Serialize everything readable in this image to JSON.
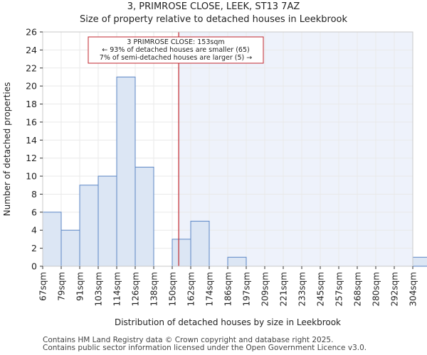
{
  "chart_data": {
    "type": "bar",
    "title": "3, PRIMROSE CLOSE, LEEK, ST13 7AZ",
    "subtitle": "Size of property relative to detached houses in Leekbrook",
    "xlabel": "Distribution of detached houses by size in Leekbrook",
    "ylabel": "Number of detached properties",
    "ylim": [
      0,
      26
    ],
    "yticks": [
      0,
      2,
      4,
      6,
      8,
      10,
      12,
      14,
      16,
      18,
      20,
      22,
      24,
      26
    ],
    "categories": [
      "67sqm",
      "79sqm",
      "91sqm",
      "103sqm",
      "114sqm",
      "126sqm",
      "138sqm",
      "150sqm",
      "162sqm",
      "174sqm",
      "186sqm",
      "197sqm",
      "209sqm",
      "221sqm",
      "233sqm",
      "245sqm",
      "257sqm",
      "268sqm",
      "280sqm",
      "292sqm",
      "304sqm"
    ],
    "values": [
      6,
      4,
      9,
      10,
      21,
      11,
      0,
      3,
      5,
      0,
      1,
      0,
      0,
      0,
      0,
      0,
      0,
      0,
      0,
      0,
      1
    ],
    "property_marker": {
      "value_sqm": 153,
      "bin_position": 7.35
    },
    "annotation": {
      "line1": "3 PRIMROSE CLOSE: 153sqm",
      "line2": "← 93% of detached houses are smaller (65)",
      "line3": "7% of semi-detached houses are larger (5) →"
    },
    "colors": {
      "bar_fill": "#dce6f4",
      "bar_stroke": "#5b86c5",
      "highlight_region": "#eef2fb",
      "marker_line": "#c0262d",
      "grid": "#e9e9e9"
    }
  },
  "footer": {
    "line1": "Contains HM Land Registry data © Crown copyright and database right 2025.",
    "line2": "Contains public sector information licensed under the Open Government Licence v3.0."
  }
}
